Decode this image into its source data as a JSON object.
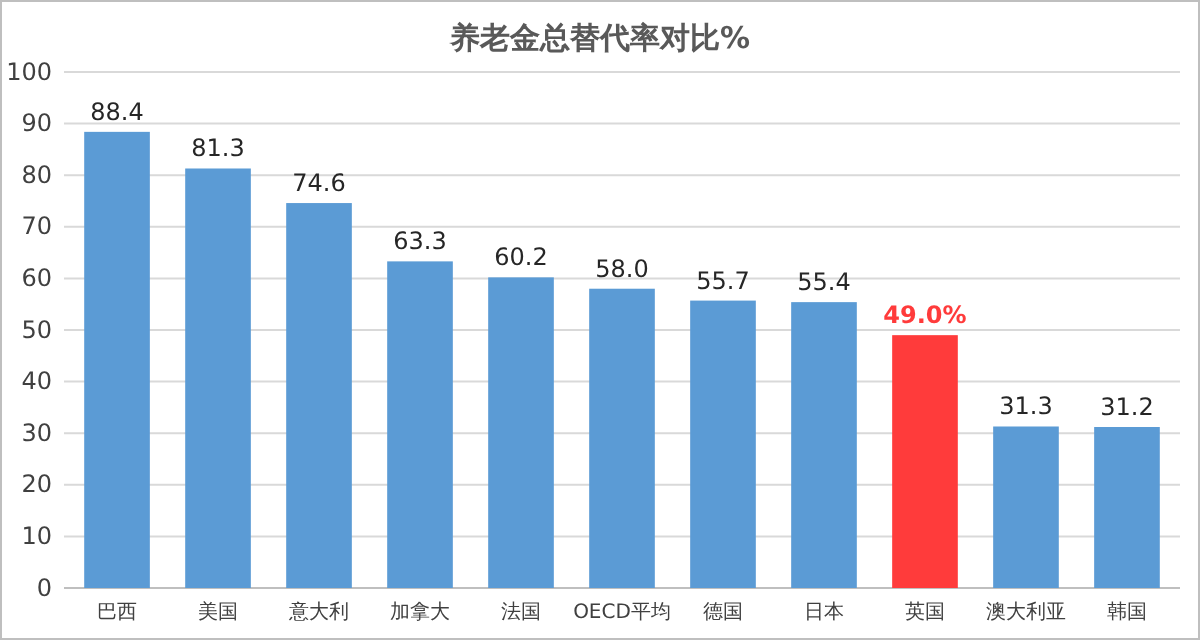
{
  "chart_data": {
    "type": "bar",
    "title": "养老金总替代率对比%",
    "categories": [
      "巴西",
      "美国",
      "意大利",
      "加拿大",
      "法国",
      "OECD平均",
      "德国",
      "日本",
      "英国",
      "澳大利亚",
      "韩国"
    ],
    "values": [
      88.4,
      81.3,
      74.6,
      63.3,
      60.2,
      58.0,
      55.7,
      55.4,
      49.0,
      31.3,
      31.2
    ],
    "value_labels": [
      "88.4",
      "81.3",
      "74.6",
      "63.3",
      "60.2",
      "58.0",
      "55.7",
      "55.4",
      "49.0%",
      "31.3",
      "31.2"
    ],
    "colors": [
      "#5b9bd5",
      "#5b9bd5",
      "#5b9bd5",
      "#5b9bd5",
      "#5b9bd5",
      "#5b9bd5",
      "#5b9bd5",
      "#5b9bd5",
      "#ff3b3b",
      "#5b9bd5",
      "#5b9bd5"
    ],
    "ylim": [
      0,
      100
    ],
    "yticks": [
      0,
      10,
      20,
      30,
      40,
      50,
      60,
      70,
      80,
      90,
      100
    ],
    "grid": "y"
  }
}
